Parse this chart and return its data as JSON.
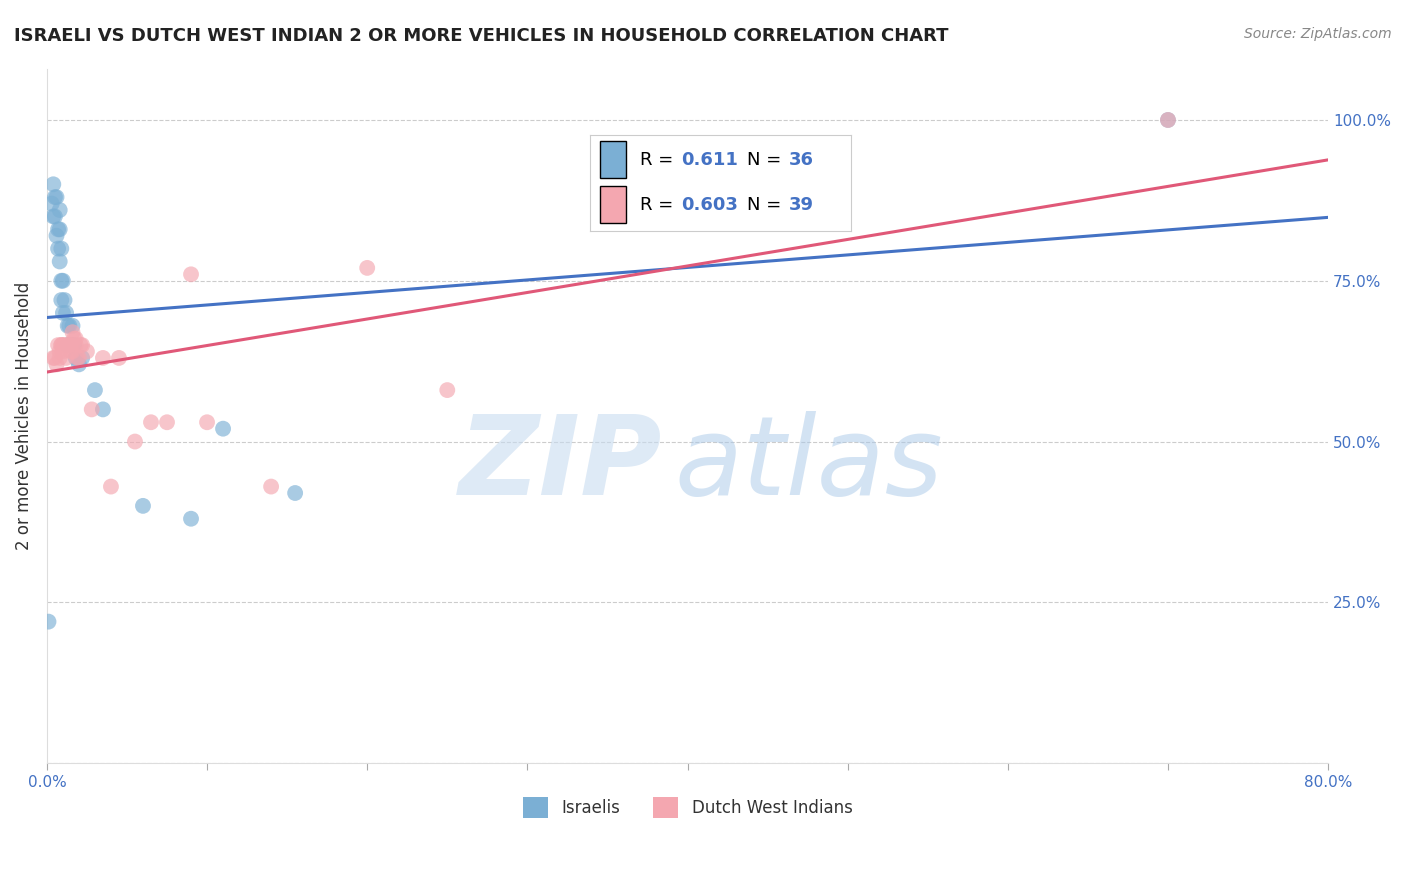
{
  "title": "ISRAELI VS DUTCH WEST INDIAN 2 OR MORE VEHICLES IN HOUSEHOLD CORRELATION CHART",
  "source": "Source: ZipAtlas.com",
  "ylabel": "2 or more Vehicles in Household",
  "xlabel": "",
  "xlim": [
    0.0,
    0.8
  ],
  "ylim": [
    0.0,
    1.08
  ],
  "xticks": [
    0.0,
    0.1,
    0.2,
    0.3,
    0.4,
    0.5,
    0.6,
    0.7,
    0.8
  ],
  "xtick_labels": [
    "0.0%",
    "",
    "",
    "",
    "",
    "",
    "",
    "",
    "80.0%"
  ],
  "yticks_right": [
    0.0,
    0.25,
    0.5,
    0.75,
    1.0
  ],
  "ytick_labels_right": [
    "",
    "25.0%",
    "50.0%",
    "75.0%",
    "100.0%"
  ],
  "israeli_color": "#7BAFD4",
  "dutch_color": "#F4A7B0",
  "israeli_line_color": "#4472C4",
  "dutch_line_color": "#E05878",
  "legend_label_israelis": "Israelis",
  "legend_label_dutch": "Dutch West Indians",
  "R_israeli": 0.611,
  "N_israeli": 36,
  "R_dutch": 0.603,
  "N_dutch": 39,
  "watermark_zip": "ZIP",
  "watermark_atlas": "atlas",
  "israeli_x": [
    0.001,
    0.003,
    0.004,
    0.004,
    0.005,
    0.005,
    0.006,
    0.006,
    0.007,
    0.007,
    0.008,
    0.008,
    0.008,
    0.009,
    0.009,
    0.009,
    0.01,
    0.01,
    0.011,
    0.012,
    0.013,
    0.013,
    0.014,
    0.015,
    0.016,
    0.017,
    0.018,
    0.02,
    0.022,
    0.03,
    0.035,
    0.06,
    0.09,
    0.11,
    0.155,
    0.7
  ],
  "israeli_y": [
    0.22,
    0.87,
    0.85,
    0.9,
    0.85,
    0.88,
    0.82,
    0.88,
    0.83,
    0.8,
    0.86,
    0.83,
    0.78,
    0.8,
    0.75,
    0.72,
    0.75,
    0.7,
    0.72,
    0.7,
    0.68,
    0.65,
    0.68,
    0.65,
    0.68,
    0.65,
    0.63,
    0.62,
    0.63,
    0.58,
    0.55,
    0.4,
    0.38,
    0.52,
    0.42,
    1.0
  ],
  "dutch_x": [
    0.004,
    0.005,
    0.006,
    0.007,
    0.008,
    0.008,
    0.009,
    0.009,
    0.01,
    0.01,
    0.011,
    0.012,
    0.013,
    0.014,
    0.015,
    0.015,
    0.016,
    0.016,
    0.017,
    0.018,
    0.018,
    0.019,
    0.02,
    0.021,
    0.022,
    0.025,
    0.028,
    0.035,
    0.04,
    0.045,
    0.055,
    0.065,
    0.075,
    0.09,
    0.1,
    0.14,
    0.2,
    0.25,
    0.7
  ],
  "dutch_y": [
    0.63,
    0.63,
    0.62,
    0.65,
    0.64,
    0.63,
    0.65,
    0.65,
    0.64,
    0.65,
    0.65,
    0.63,
    0.65,
    0.65,
    0.64,
    0.65,
    0.64,
    0.67,
    0.66,
    0.65,
    0.66,
    0.63,
    0.63,
    0.65,
    0.65,
    0.64,
    0.55,
    0.63,
    0.43,
    0.63,
    0.5,
    0.53,
    0.53,
    0.76,
    0.53,
    0.43,
    0.77,
    0.58,
    1.0
  ],
  "background_color": "#FFFFFF",
  "grid_color": "#CCCCCC",
  "title_fontsize": 13,
  "source_fontsize": 10,
  "tick_fontsize": 11,
  "ylabel_fontsize": 12
}
